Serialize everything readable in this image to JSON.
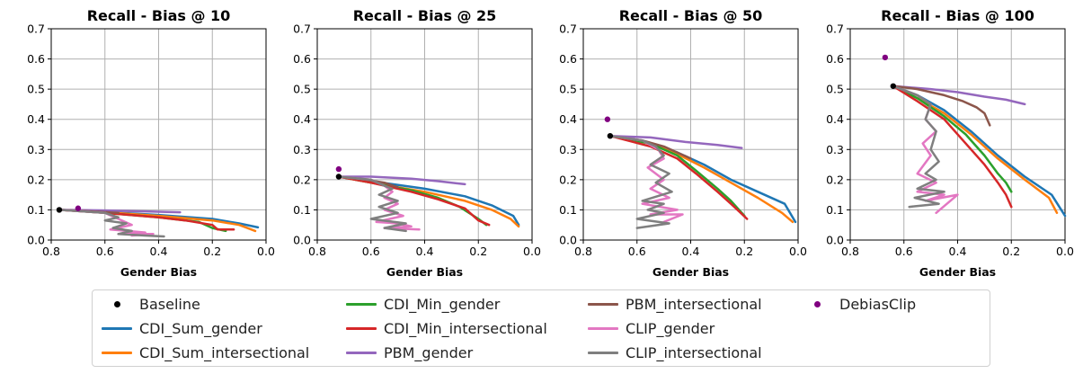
{
  "colors": {
    "Baseline": "#000000",
    "CDI_Sum_gender": "#1f77b4",
    "CDI_Sum_intersectional": "#ff7f0e",
    "CDI_Min_gender": "#2ca02c",
    "CDI_Min_intersectional": "#d62728",
    "PBM_gender": "#9467bd",
    "PBM_intersectional": "#8c564b",
    "CLIP_gender": "#e377c2",
    "CLIP_intersectional": "#7f7f7f",
    "DebiasClip": "#800080"
  },
  "legend": {
    "placement": "bottom",
    "entries": [
      {
        "label": "Baseline",
        "kind": "point"
      },
      {
        "label": "CDI_Sum_gender",
        "kind": "line"
      },
      {
        "label": "CDI_Sum_intersectional",
        "kind": "line"
      },
      {
        "label": "CDI_Min_gender",
        "kind": "line"
      },
      {
        "label": "CDI_Min_intersectional",
        "kind": "line"
      },
      {
        "label": "PBM_gender",
        "kind": "line"
      },
      {
        "label": "PBM_intersectional",
        "kind": "line"
      },
      {
        "label": "CLIP_gender",
        "kind": "line"
      },
      {
        "label": "CLIP_intersectional",
        "kind": "line"
      },
      {
        "label": "DebiasClip",
        "kind": "point"
      }
    ]
  },
  "chart_data": [
    {
      "type": "line",
      "title": "Recall - Bias @ 10",
      "xlabel": "Gender Bias",
      "ylabel": "",
      "xlim": [
        0.8,
        0.0
      ],
      "ylim": [
        0.0,
        0.7
      ],
      "xticks": [
        "0.8",
        "0.6",
        "0.4",
        "0.2",
        "0.0"
      ],
      "yticks": [
        "0.0",
        "0.1",
        "0.2",
        "0.3",
        "0.4",
        "0.5",
        "0.6",
        "0.7"
      ],
      "grid": true,
      "points": [
        {
          "name": "Baseline",
          "x": 0.77,
          "y": 0.1
        },
        {
          "name": "DebiasClip",
          "x": 0.7,
          "y": 0.105
        }
      ],
      "series": [
        {
          "name": "CDI_Sum_gender",
          "x": [
            0.77,
            0.6,
            0.4,
            0.2,
            0.1,
            0.03
          ],
          "y": [
            0.1,
            0.093,
            0.083,
            0.07,
            0.055,
            0.042
          ]
        },
        {
          "name": "CDI_Sum_intersectional",
          "x": [
            0.77,
            0.6,
            0.4,
            0.2,
            0.1,
            0.04
          ],
          "y": [
            0.1,
            0.092,
            0.08,
            0.065,
            0.05,
            0.03
          ]
        },
        {
          "name": "CDI_Min_gender",
          "x": [
            0.77,
            0.6,
            0.4,
            0.25,
            0.2,
            0.15
          ],
          "y": [
            0.1,
            0.09,
            0.075,
            0.06,
            0.04,
            0.03
          ]
        },
        {
          "name": "CDI_Min_intersectional",
          "x": [
            0.77,
            0.6,
            0.4,
            0.3,
            0.2,
            0.18,
            0.12
          ],
          "y": [
            0.1,
            0.09,
            0.075,
            0.065,
            0.05,
            0.035,
            0.035
          ]
        },
        {
          "name": "PBM_gender",
          "x": [
            0.77,
            0.6,
            0.45,
            0.32
          ],
          "y": [
            0.1,
            0.098,
            0.095,
            0.092
          ]
        },
        {
          "name": "PBM_intersectional",
          "x": [
            0.77,
            0.65,
            0.55
          ],
          "y": [
            0.1,
            0.095,
            0.09
          ]
        },
        {
          "name": "CLIP_gender",
          "x": [
            0.77,
            0.6,
            0.55,
            0.5,
            0.58,
            0.45,
            0.55,
            0.42,
            0.5
          ],
          "y": [
            0.1,
            0.09,
            0.07,
            0.05,
            0.035,
            0.025,
            0.02,
            0.02,
            0.015
          ]
        },
        {
          "name": "CLIP_intersectional",
          "x": [
            0.77,
            0.6,
            0.55,
            0.6,
            0.52,
            0.57,
            0.5,
            0.55,
            0.45,
            0.38
          ],
          "y": [
            0.1,
            0.09,
            0.075,
            0.065,
            0.055,
            0.04,
            0.03,
            0.02,
            0.015,
            0.012
          ]
        }
      ]
    },
    {
      "type": "line",
      "title": "Recall - Bias @ 25",
      "xlabel": "Gender Bias",
      "ylabel": "",
      "xlim": [
        0.8,
        0.0
      ],
      "ylim": [
        0.0,
        0.7
      ],
      "xticks": [
        "0.8",
        "0.6",
        "0.4",
        "0.2",
        "0.0"
      ],
      "yticks": [
        "0.0",
        "0.1",
        "0.2",
        "0.3",
        "0.4",
        "0.5",
        "0.6",
        "0.7"
      ],
      "grid": true,
      "points": [
        {
          "name": "Baseline",
          "x": 0.72,
          "y": 0.21
        },
        {
          "name": "DebiasClip",
          "x": 0.72,
          "y": 0.235
        }
      ],
      "series": [
        {
          "name": "CDI_Sum_gender",
          "x": [
            0.72,
            0.6,
            0.4,
            0.25,
            0.15,
            0.07,
            0.05
          ],
          "y": [
            0.21,
            0.195,
            0.17,
            0.145,
            0.115,
            0.08,
            0.05
          ]
        },
        {
          "name": "CDI_Sum_intersectional",
          "x": [
            0.72,
            0.6,
            0.4,
            0.25,
            0.15,
            0.08,
            0.05
          ],
          "y": [
            0.21,
            0.19,
            0.16,
            0.13,
            0.1,
            0.07,
            0.045
          ]
        },
        {
          "name": "CDI_Min_gender",
          "x": [
            0.72,
            0.6,
            0.45,
            0.35,
            0.27,
            0.2,
            0.17
          ],
          "y": [
            0.21,
            0.19,
            0.165,
            0.14,
            0.11,
            0.07,
            0.05
          ]
        },
        {
          "name": "CDI_Min_intersectional",
          "x": [
            0.72,
            0.6,
            0.45,
            0.35,
            0.25,
            0.2,
            0.16
          ],
          "y": [
            0.21,
            0.19,
            0.16,
            0.135,
            0.105,
            0.065,
            0.05
          ]
        },
        {
          "name": "PBM_gender",
          "x": [
            0.72,
            0.6,
            0.45,
            0.35,
            0.25
          ],
          "y": [
            0.21,
            0.21,
            0.203,
            0.195,
            0.185
          ]
        },
        {
          "name": "PBM_intersectional",
          "x": [
            0.72,
            0.62,
            0.55,
            0.5
          ],
          "y": [
            0.21,
            0.2,
            0.19,
            0.175
          ]
        },
        {
          "name": "CLIP_gender",
          "x": [
            0.72,
            0.6,
            0.55,
            0.52,
            0.55,
            0.5,
            0.55,
            0.48,
            0.58,
            0.5,
            0.45,
            0.55,
            0.42
          ],
          "y": [
            0.21,
            0.2,
            0.18,
            0.16,
            0.14,
            0.12,
            0.1,
            0.08,
            0.06,
            0.055,
            0.045,
            0.04,
            0.035
          ]
        },
        {
          "name": "CLIP_intersectional",
          "x": [
            0.72,
            0.6,
            0.55,
            0.52,
            0.57,
            0.5,
            0.57,
            0.5,
            0.6,
            0.47,
            0.55,
            0.47
          ],
          "y": [
            0.21,
            0.2,
            0.18,
            0.17,
            0.15,
            0.13,
            0.11,
            0.09,
            0.07,
            0.055,
            0.04,
            0.03
          ]
        }
      ]
    },
    {
      "type": "line",
      "title": "Recall - Bias @ 50",
      "xlabel": "Gender Bias",
      "ylabel": "",
      "xlim": [
        0.8,
        0.0
      ],
      "ylim": [
        0.0,
        0.7
      ],
      "xticks": [
        "0.8",
        "0.6",
        "0.4",
        "0.2",
        "0.0"
      ],
      "yticks": [
        "0.0",
        "0.1",
        "0.2",
        "0.3",
        "0.4",
        "0.5",
        "0.6",
        "0.7"
      ],
      "grid": true,
      "points": [
        {
          "name": "Baseline",
          "x": 0.7,
          "y": 0.345
        },
        {
          "name": "DebiasClip",
          "x": 0.71,
          "y": 0.4
        }
      ],
      "series": [
        {
          "name": "CDI_Sum_gender",
          "x": [
            0.7,
            0.55,
            0.45,
            0.35,
            0.25,
            0.15,
            0.05,
            0.01
          ],
          "y": [
            0.345,
            0.32,
            0.29,
            0.25,
            0.2,
            0.16,
            0.12,
            0.06
          ]
        },
        {
          "name": "CDI_Sum_intersectional",
          "x": [
            0.7,
            0.55,
            0.45,
            0.35,
            0.25,
            0.15,
            0.06,
            0.02
          ],
          "y": [
            0.345,
            0.32,
            0.285,
            0.24,
            0.19,
            0.14,
            0.09,
            0.06
          ]
        },
        {
          "name": "CDI_Min_gender",
          "x": [
            0.7,
            0.55,
            0.45,
            0.38,
            0.3,
            0.25,
            0.22,
            0.2
          ],
          "y": [
            0.345,
            0.32,
            0.28,
            0.23,
            0.17,
            0.13,
            0.1,
            0.08
          ]
        },
        {
          "name": "CDI_Min_intersectional",
          "x": [
            0.7,
            0.55,
            0.45,
            0.38,
            0.3,
            0.25,
            0.22,
            0.19
          ],
          "y": [
            0.345,
            0.31,
            0.27,
            0.22,
            0.16,
            0.12,
            0.095,
            0.07
          ]
        },
        {
          "name": "PBM_gender",
          "x": [
            0.7,
            0.55,
            0.42,
            0.3,
            0.21
          ],
          "y": [
            0.345,
            0.34,
            0.325,
            0.315,
            0.305
          ]
        },
        {
          "name": "PBM_intersectional",
          "x": [
            0.7,
            0.58,
            0.5,
            0.45,
            0.4
          ],
          "y": [
            0.345,
            0.33,
            0.31,
            0.29,
            0.27
          ]
        },
        {
          "name": "CLIP_gender",
          "x": [
            0.7,
            0.58,
            0.52,
            0.5,
            0.56,
            0.5,
            0.55,
            0.48,
            0.58,
            0.45,
            0.55,
            0.43,
            0.5
          ],
          "y": [
            0.345,
            0.33,
            0.3,
            0.27,
            0.24,
            0.2,
            0.17,
            0.14,
            0.12,
            0.1,
            0.085,
            0.085,
            0.06
          ]
        },
        {
          "name": "CLIP_intersectional",
          "x": [
            0.7,
            0.58,
            0.53,
            0.5,
            0.55,
            0.48,
            0.53,
            0.47,
            0.58,
            0.5,
            0.56,
            0.5,
            0.6,
            0.48,
            0.6
          ],
          "y": [
            0.345,
            0.33,
            0.31,
            0.28,
            0.25,
            0.22,
            0.19,
            0.16,
            0.13,
            0.12,
            0.1,
            0.09,
            0.07,
            0.055,
            0.04
          ]
        }
      ]
    },
    {
      "type": "line",
      "title": "Recall - Bias @ 100",
      "xlabel": "Gender Bias",
      "ylabel": "",
      "xlim": [
        0.8,
        0.0
      ],
      "ylim": [
        0.0,
        0.7
      ],
      "xticks": [
        "0.8",
        "0.6",
        "0.4",
        "0.2",
        "0.0"
      ],
      "yticks": [
        "0.0",
        "0.1",
        "0.2",
        "0.3",
        "0.4",
        "0.5",
        "0.6",
        "0.7"
      ],
      "grid": true,
      "points": [
        {
          "name": "Baseline",
          "x": 0.64,
          "y": 0.51
        },
        {
          "name": "DebiasClip",
          "x": 0.67,
          "y": 0.605
        }
      ],
      "series": [
        {
          "name": "CDI_Sum_gender",
          "x": [
            0.64,
            0.55,
            0.45,
            0.35,
            0.25,
            0.15,
            0.05,
            0.0
          ],
          "y": [
            0.51,
            0.48,
            0.43,
            0.36,
            0.28,
            0.21,
            0.15,
            0.08
          ]
        },
        {
          "name": "CDI_Sum_intersectional",
          "x": [
            0.64,
            0.55,
            0.45,
            0.35,
            0.25,
            0.15,
            0.06,
            0.03
          ],
          "y": [
            0.51,
            0.47,
            0.42,
            0.35,
            0.27,
            0.2,
            0.14,
            0.09
          ]
        },
        {
          "name": "CDI_Min_gender",
          "x": [
            0.64,
            0.55,
            0.45,
            0.37,
            0.3,
            0.25,
            0.22,
            0.2
          ],
          "y": [
            0.51,
            0.47,
            0.41,
            0.35,
            0.28,
            0.22,
            0.19,
            0.16
          ]
        },
        {
          "name": "CDI_Min_intersectional",
          "x": [
            0.64,
            0.55,
            0.45,
            0.38,
            0.3,
            0.25,
            0.22,
            0.2
          ],
          "y": [
            0.51,
            0.46,
            0.4,
            0.33,
            0.25,
            0.19,
            0.15,
            0.11
          ]
        },
        {
          "name": "PBM_gender",
          "x": [
            0.64,
            0.5,
            0.4,
            0.3,
            0.22,
            0.15
          ],
          "y": [
            0.51,
            0.5,
            0.49,
            0.475,
            0.465,
            0.45
          ]
        },
        {
          "name": "PBM_intersectional",
          "x": [
            0.64,
            0.55,
            0.45,
            0.38,
            0.33,
            0.3,
            0.28
          ],
          "y": [
            0.51,
            0.5,
            0.48,
            0.46,
            0.44,
            0.42,
            0.38
          ]
        },
        {
          "name": "CLIP_gender",
          "x": [
            0.64,
            0.55,
            0.5,
            0.52,
            0.48,
            0.53,
            0.5,
            0.55,
            0.48,
            0.55,
            0.45,
            0.52,
            0.4,
            0.48
          ],
          "y": [
            0.51,
            0.48,
            0.45,
            0.4,
            0.36,
            0.32,
            0.28,
            0.22,
            0.19,
            0.16,
            0.15,
            0.13,
            0.15,
            0.09
          ]
        },
        {
          "name": "CLIP_intersectional",
          "x": [
            0.64,
            0.55,
            0.5,
            0.52,
            0.48,
            0.5,
            0.47,
            0.52,
            0.48,
            0.55,
            0.45,
            0.56,
            0.47,
            0.58
          ],
          "y": [
            0.51,
            0.48,
            0.45,
            0.4,
            0.36,
            0.3,
            0.26,
            0.22,
            0.2,
            0.17,
            0.16,
            0.14,
            0.12,
            0.11
          ]
        }
      ]
    }
  ]
}
